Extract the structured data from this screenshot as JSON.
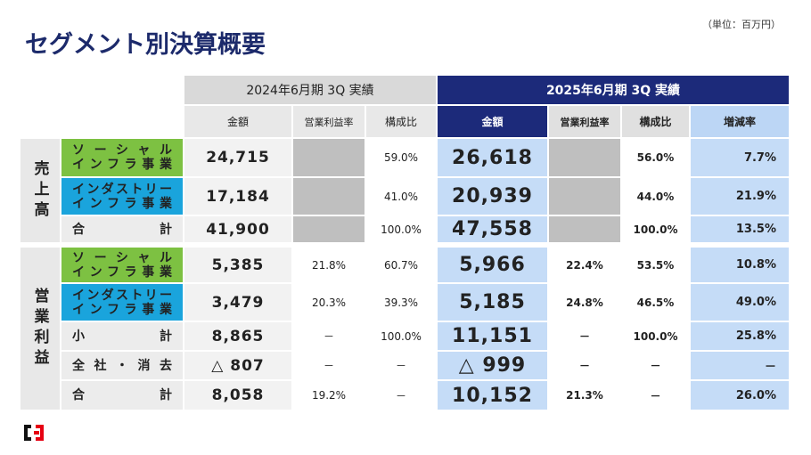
{
  "title": "セグメント別決算概要",
  "unit": "（単位：百万円）",
  "table": {
    "year_headers": [
      "2024年6月期 3Q 実績",
      "2025年6月期 3Q 実績"
    ],
    "column_headers": [
      "金額",
      "営業利益率",
      "構成比",
      "金額",
      "営業利益率",
      "構成比",
      "増減率"
    ],
    "sections": [
      {
        "label": "売上高",
        "rows": [
          {
            "segment": [
              "ソーシャル",
              "インフラ事業"
            ],
            "cells": [
              "24,715",
              null,
              "59.0%",
              "26,618",
              null,
              "56.0%",
              "7.7%"
            ]
          },
          {
            "segment": [
              "インダストリー",
              "インフラ事業"
            ],
            "cells": [
              "17,184",
              null,
              "41.0%",
              "20,939",
              null,
              "44.0%",
              "21.9%"
            ]
          },
          {
            "segment": [
              "合計"
            ],
            "cells": [
              "41,900",
              null,
              "100.0%",
              "47,558",
              null,
              "100.0%",
              "13.5%"
            ]
          }
        ]
      },
      {
        "label": "営業利益",
        "rows": [
          {
            "segment": [
              "ソーシャル",
              "インフラ事業"
            ],
            "cells": [
              "5,385",
              "21.8%",
              "60.7%",
              "5,966",
              "22.4%",
              "53.5%",
              "10.8%"
            ]
          },
          {
            "segment": [
              "インダストリー",
              "インフラ事業"
            ],
            "cells": [
              "3,479",
              "20.3%",
              "39.3%",
              "5,185",
              "24.8%",
              "46.5%",
              "49.0%"
            ]
          },
          {
            "segment": [
              "小計"
            ],
            "cells": [
              "8,865",
              "－",
              "100.0%",
              "11,151",
              "－",
              "100.0%",
              "25.8%"
            ]
          },
          {
            "segment": [
              "全社・消去"
            ],
            "cells": [
              "△ 807",
              "－",
              "－",
              "△ 999",
              "－",
              "－",
              "－"
            ]
          },
          {
            "segment": [
              "合計"
            ],
            "cells": [
              "8,058",
              "19.2%",
              "－",
              "10,152",
              "21.3%",
              "－",
              "26.0%"
            ]
          }
        ]
      }
    ]
  }
}
